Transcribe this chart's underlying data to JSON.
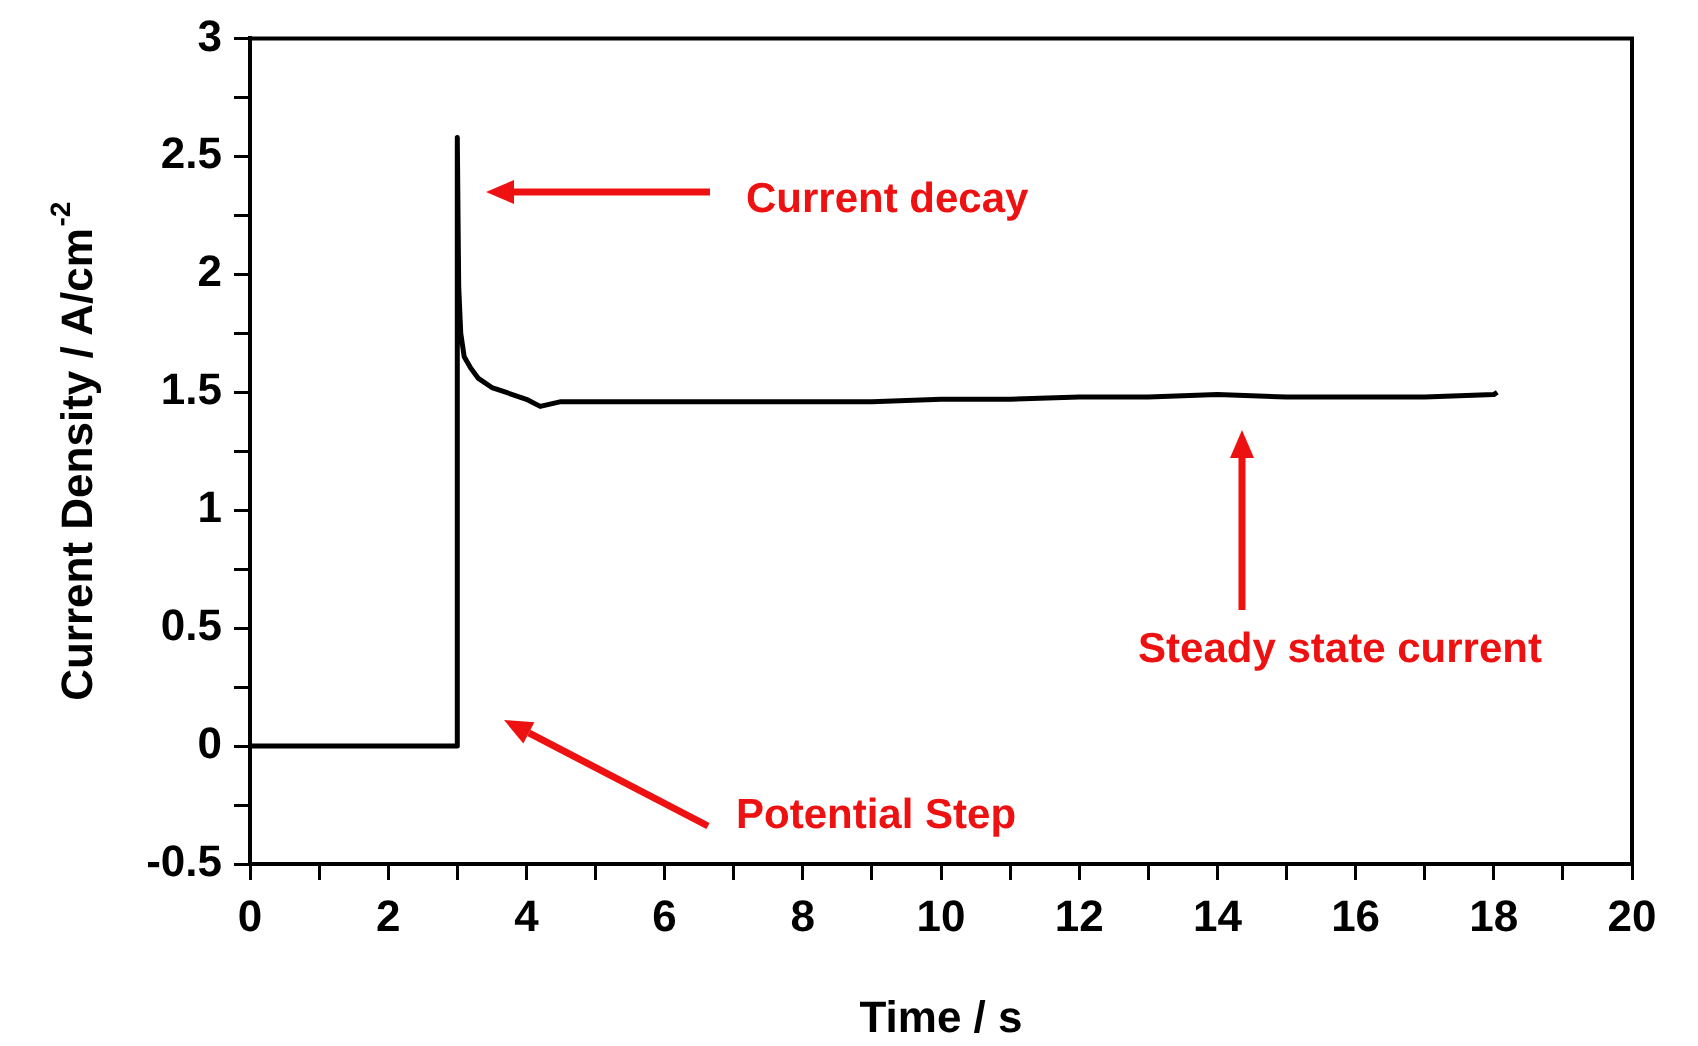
{
  "chart_data": {
    "type": "line",
    "xlabel": "Time / s",
    "ylabel": "Current Density / A/cm$^{-2}$",
    "xlim": [
      0,
      20
    ],
    "xticks": [
      0,
      {
        "value": 1,
        "label": null
      },
      2,
      {
        "value": 3,
        "label": null
      },
      4,
      {
        "value": 5,
        "label": null
      },
      6,
      {
        "value": 7,
        "label": null
      },
      8,
      {
        "value": 9,
        "label": null
      },
      10,
      {
        "value": 11,
        "label": null
      },
      12,
      {
        "value": 13,
        "label": null
      },
      14,
      {
        "value": 15,
        "label": null
      },
      16,
      {
        "value": 17,
        "label": null
      },
      18,
      {
        "value": 19,
        "label": null
      },
      20
    ],
    "ylim": [
      -0.5,
      3
    ],
    "yticks": [
      -0.5,
      {
        "value": -0.25,
        "label": null
      },
      0,
      {
        "value": 0.25,
        "label": null
      },
      0.5,
      {
        "value": 0.75,
        "label": null
      },
      1,
      {
        "value": 1.25,
        "label": null
      },
      1.5,
      {
        "value": 1.75,
        "label": null
      },
      2,
      {
        "value": 2.25,
        "label": null
      },
      2.5,
      {
        "value": 2.75,
        "label": null
      },
      3
    ],
    "grid": false,
    "legend": false,
    "series": [
      {
        "color": "#000000",
        "x": [
          0,
          3,
          3,
          3.02,
          3.05,
          3.1,
          3.2,
          3.3,
          3.5,
          3.7,
          4,
          4.2,
          4.5,
          5,
          6,
          7,
          8,
          9,
          10,
          11,
          12,
          13,
          14,
          15,
          16,
          17,
          18,
          18.05
        ],
        "values": [
          0,
          0,
          2.58,
          1.95,
          1.75,
          1.65,
          1.6,
          1.56,
          1.52,
          1.5,
          1.47,
          1.44,
          1.46,
          1.46,
          1.46,
          1.46,
          1.46,
          1.46,
          1.47,
          1.47,
          1.48,
          1.48,
          1.49,
          1.48,
          1.48,
          1.48,
          1.49,
          1.5
        ]
      }
    ],
    "annotations": [
      "Current decay",
      "Potential Step",
      "Steady state current"
    ]
  }
}
